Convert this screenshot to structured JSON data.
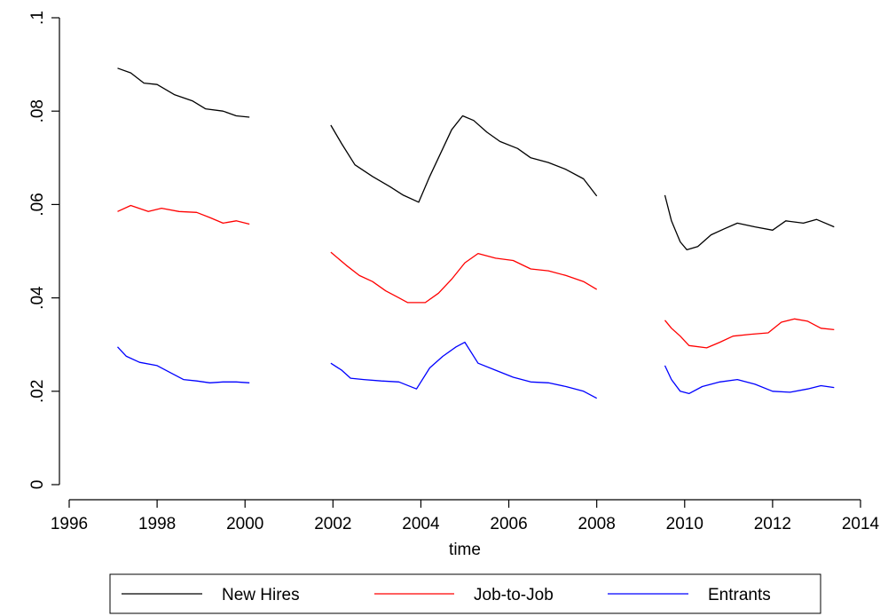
{
  "chart_data": {
    "type": "line",
    "title": "",
    "xlabel": "time",
    "ylabel": "",
    "xlim": [
      1996,
      2014
    ],
    "ylim": [
      0,
      0.1
    ],
    "x_ticks": [
      1996,
      1998,
      2000,
      2002,
      2004,
      2006,
      2008,
      2010,
      2012,
      2014
    ],
    "x_tick_labels": [
      "1996",
      "1998",
      "2000",
      "2002",
      "2004",
      "2006",
      "2008",
      "2010",
      "2012",
      "2014"
    ],
    "y_ticks": [
      0,
      0.02,
      0.04,
      0.06,
      0.08,
      0.1
    ],
    "y_tick_labels": [
      "0",
      ".02",
      ".04",
      ".06",
      ".08",
      ".1"
    ],
    "grid": false,
    "legend_position": "bottom",
    "series": [
      {
        "name": "New Hires",
        "color": "#000000",
        "segments": [
          [
            [
              1997.1,
              0.0892
            ],
            [
              1997.4,
              0.0882
            ],
            [
              1997.7,
              0.086
            ],
            [
              1998.0,
              0.0857
            ],
            [
              1998.4,
              0.0835
            ],
            [
              1998.8,
              0.0822
            ],
            [
              1999.1,
              0.0805
            ],
            [
              1999.5,
              0.08
            ],
            [
              1999.8,
              0.079
            ],
            [
              2000.1,
              0.0787
            ]
          ],
          [
            [
              2001.95,
              0.077
            ],
            [
              2002.2,
              0.073
            ],
            [
              2002.5,
              0.0685
            ],
            [
              2002.9,
              0.066
            ],
            [
              2003.3,
              0.0638
            ],
            [
              2003.6,
              0.062
            ],
            [
              2003.95,
              0.0605
            ],
            [
              2004.2,
              0.066
            ],
            [
              2004.5,
              0.072
            ],
            [
              2004.7,
              0.076
            ],
            [
              2004.95,
              0.079
            ],
            [
              2005.2,
              0.078
            ],
            [
              2005.5,
              0.0755
            ],
            [
              2005.8,
              0.0735
            ],
            [
              2006.2,
              0.072
            ],
            [
              2006.5,
              0.07
            ],
            [
              2006.9,
              0.069
            ],
            [
              2007.3,
              0.0675
            ],
            [
              2007.7,
              0.0655
            ],
            [
              2008.0,
              0.0618
            ]
          ],
          [
            [
              2009.55,
              0.062
            ],
            [
              2009.7,
              0.0565
            ],
            [
              2009.9,
              0.052
            ],
            [
              2010.05,
              0.0503
            ],
            [
              2010.3,
              0.051
            ],
            [
              2010.6,
              0.0535
            ],
            [
              2010.9,
              0.0548
            ],
            [
              2011.2,
              0.056
            ],
            [
              2011.6,
              0.0552
            ],
            [
              2012.0,
              0.0545
            ],
            [
              2012.3,
              0.0565
            ],
            [
              2012.7,
              0.056
            ],
            [
              2013.0,
              0.0568
            ],
            [
              2013.4,
              0.0552
            ]
          ]
        ]
      },
      {
        "name": "Job-to-Job",
        "color": "#ff0000",
        "segments": [
          [
            [
              1997.1,
              0.0585
            ],
            [
              1997.4,
              0.0598
            ],
            [
              1997.8,
              0.0585
            ],
            [
              1998.1,
              0.0592
            ],
            [
              1998.5,
              0.0585
            ],
            [
              1998.9,
              0.0583
            ],
            [
              1999.2,
              0.0572
            ],
            [
              1999.5,
              0.056
            ],
            [
              1999.8,
              0.0565
            ],
            [
              2000.1,
              0.0558
            ]
          ],
          [
            [
              2001.95,
              0.0498
            ],
            [
              2002.3,
              0.047
            ],
            [
              2002.6,
              0.0448
            ],
            [
              2002.9,
              0.0435
            ],
            [
              2003.2,
              0.0415
            ],
            [
              2003.5,
              0.04
            ],
            [
              2003.7,
              0.039
            ],
            [
              2004.1,
              0.039
            ],
            [
              2004.4,
              0.041
            ],
            [
              2004.7,
              0.044
            ],
            [
              2005.0,
              0.0475
            ],
            [
              2005.3,
              0.0495
            ],
            [
              2005.7,
              0.0485
            ],
            [
              2006.1,
              0.048
            ],
            [
              2006.5,
              0.0462
            ],
            [
              2006.9,
              0.0458
            ],
            [
              2007.3,
              0.0448
            ],
            [
              2007.7,
              0.0435
            ],
            [
              2008.0,
              0.0418
            ]
          ],
          [
            [
              2009.55,
              0.0352
            ],
            [
              2009.7,
              0.0335
            ],
            [
              2009.9,
              0.0318
            ],
            [
              2010.1,
              0.0298
            ],
            [
              2010.5,
              0.0293
            ],
            [
              2010.8,
              0.0305
            ],
            [
              2011.1,
              0.0318
            ],
            [
              2011.5,
              0.0322
            ],
            [
              2011.9,
              0.0325
            ],
            [
              2012.2,
              0.0348
            ],
            [
              2012.5,
              0.0355
            ],
            [
              2012.8,
              0.035
            ],
            [
              2013.1,
              0.0335
            ],
            [
              2013.4,
              0.0332
            ]
          ]
        ]
      },
      {
        "name": "Entrants",
        "color": "#0000ff",
        "segments": [
          [
            [
              1997.1,
              0.0295
            ],
            [
              1997.3,
              0.0275
            ],
            [
              1997.6,
              0.0262
            ],
            [
              1998.0,
              0.0255
            ],
            [
              1998.3,
              0.024
            ],
            [
              1998.6,
              0.0225
            ],
            [
              1998.9,
              0.0222
            ],
            [
              1999.2,
              0.0218
            ],
            [
              1999.5,
              0.022
            ],
            [
              1999.8,
              0.022
            ],
            [
              2000.1,
              0.0218
            ]
          ],
          [
            [
              2001.95,
              0.026
            ],
            [
              2002.2,
              0.0245
            ],
            [
              2002.4,
              0.0228
            ],
            [
              2002.7,
              0.0225
            ],
            [
              2003.1,
              0.0222
            ],
            [
              2003.5,
              0.022
            ],
            [
              2003.9,
              0.0205
            ],
            [
              2004.2,
              0.025
            ],
            [
              2004.5,
              0.0275
            ],
            [
              2004.8,
              0.0295
            ],
            [
              2005.0,
              0.0305
            ],
            [
              2005.3,
              0.026
            ],
            [
              2005.7,
              0.0245
            ],
            [
              2006.1,
              0.023
            ],
            [
              2006.5,
              0.022
            ],
            [
              2006.9,
              0.0218
            ],
            [
              2007.3,
              0.021
            ],
            [
              2007.7,
              0.02
            ],
            [
              2008.0,
              0.0185
            ]
          ],
          [
            [
              2009.55,
              0.0255
            ],
            [
              2009.7,
              0.0225
            ],
            [
              2009.9,
              0.02
            ],
            [
              2010.1,
              0.0195
            ],
            [
              2010.4,
              0.021
            ],
            [
              2010.8,
              0.022
            ],
            [
              2011.2,
              0.0225
            ],
            [
              2011.6,
              0.0215
            ],
            [
              2012.0,
              0.02
            ],
            [
              2012.4,
              0.0198
            ],
            [
              2012.8,
              0.0205
            ],
            [
              2013.1,
              0.0212
            ],
            [
              2013.4,
              0.0208
            ]
          ]
        ]
      }
    ]
  }
}
